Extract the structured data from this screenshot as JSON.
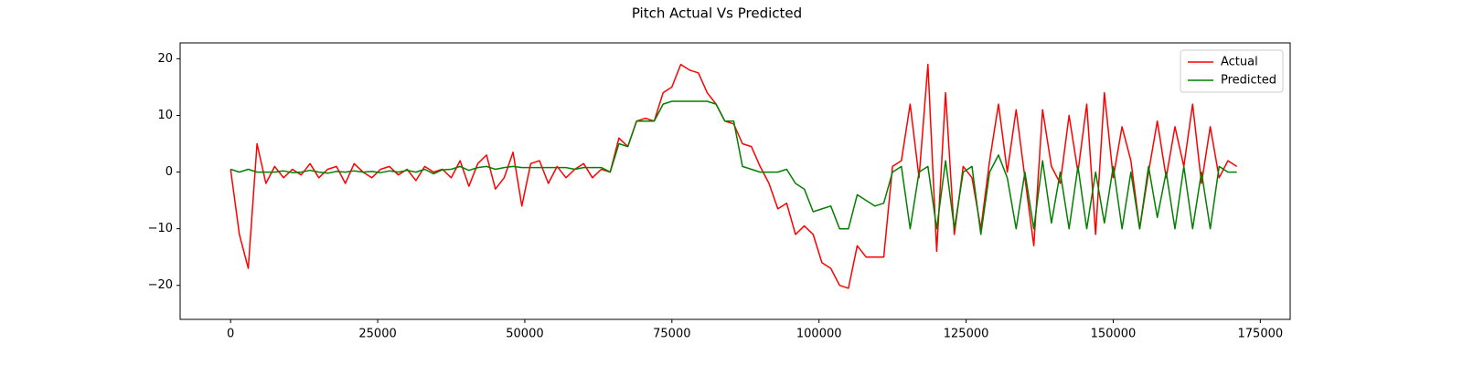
{
  "chart_data": {
    "type": "line",
    "title": "Pitch Actual Vs Predicted",
    "x": [
      0,
      1500,
      3000,
      4500,
      6000,
      7500,
      9000,
      10500,
      12000,
      13500,
      15000,
      16500,
      18000,
      19500,
      21000,
      22500,
      24000,
      25500,
      27000,
      28500,
      30000,
      31500,
      33000,
      34500,
      36000,
      37500,
      39000,
      40500,
      42000,
      43500,
      45000,
      46500,
      48000,
      49500,
      51000,
      52500,
      54000,
      55500,
      57000,
      58500,
      60000,
      61500,
      63000,
      64500,
      66000,
      67500,
      69000,
      70500,
      72000,
      73500,
      75000,
      76500,
      78000,
      79500,
      81000,
      82500,
      84000,
      85500,
      87000,
      88500,
      90000,
      91500,
      93000,
      94500,
      96000,
      97500,
      99000,
      100500,
      102000,
      103500,
      105000,
      106500,
      108000,
      109500,
      111000,
      112500,
      114000,
      115500,
      117000,
      118500,
      120000,
      121500,
      123000,
      124500,
      126000,
      127500,
      129000,
      130500,
      132000,
      133500,
      135000,
      136500,
      138000,
      139500,
      141000,
      142500,
      144000,
      145500,
      147000,
      148500,
      150000,
      151500,
      153000,
      154500,
      156000,
      157500,
      159000,
      160500,
      162000,
      163500,
      165000,
      166500,
      168000,
      169500,
      171000
    ],
    "series": [
      {
        "name": "Actual",
        "color": "#ff0000",
        "values": [
          0.5,
          -11,
          -17,
          5,
          -2,
          1,
          -1,
          0.5,
          -0.5,
          1.5,
          -1,
          0.5,
          1,
          -2,
          1.5,
          0,
          -1,
          0.5,
          1,
          -0.5,
          0.5,
          -1.5,
          1,
          0,
          0.5,
          -1,
          2,
          -2.5,
          1.5,
          3,
          -3,
          -1,
          3.5,
          -6,
          1.5,
          2,
          -2,
          1,
          -1,
          0.5,
          1.5,
          -1,
          0.5,
          0,
          6,
          4.5,
          9,
          9.5,
          9,
          14,
          15,
          19,
          18,
          17.5,
          14,
          12,
          9,
          8.5,
          5,
          4.5,
          1,
          -2,
          -6.5,
          -5.5,
          -11,
          -9.5,
          -11,
          -16,
          -17,
          -20,
          -20.5,
          -13,
          -15,
          -15,
          -15,
          1,
          2,
          12,
          -1,
          19,
          -14,
          14,
          -11,
          1,
          -1,
          -10,
          2,
          12,
          0,
          11,
          -1,
          -13,
          11,
          1,
          -2,
          10,
          0,
          12,
          -11,
          14,
          -1,
          8,
          2,
          -10,
          0,
          9,
          -1,
          8,
          1,
          12,
          -2,
          8,
          -1,
          2,
          1
        ]
      },
      {
        "name": "Predicted",
        "color": "#008000",
        "values": [
          0.5,
          0,
          0.5,
          0,
          0,
          0,
          0.2,
          -0.1,
          0,
          0.3,
          0,
          -0.2,
          0.1,
          0,
          0.2,
          0,
          0.1,
          -0.1,
          0.2,
          0,
          0.3,
          0,
          0.5,
          -0.3,
          0.4,
          0.5,
          1,
          0.3,
          0.8,
          1,
          0.5,
          0.8,
          1,
          0.8,
          0.8,
          0.8,
          0.8,
          0.8,
          0.8,
          0.5,
          0.8,
          0.8,
          0.8,
          0,
          5,
          4.5,
          9,
          9,
          9,
          12,
          12.5,
          12.5,
          12.5,
          12.5,
          12.5,
          12,
          9,
          9,
          1,
          0.5,
          0,
          0,
          0,
          0.5,
          -2,
          -3,
          -7,
          -6.5,
          -6,
          -10,
          -10,
          -4,
          -5,
          -6,
          -5.5,
          0,
          1,
          -10,
          0,
          1,
          -10,
          2,
          -10,
          0,
          1,
          -11,
          0,
          3,
          -1,
          -10,
          0,
          -10,
          2,
          -9,
          0,
          -10,
          1,
          -10,
          0,
          -9,
          1,
          -10,
          0,
          -10,
          1,
          -8,
          0,
          -10,
          1,
          -10,
          0,
          -10,
          1,
          0,
          0
        ]
      }
    ],
    "xlim": [
      -8575,
      180075
    ],
    "ylim": [
      -26,
      22.8
    ],
    "xticks": [
      0,
      25000,
      50000,
      75000,
      100000,
      125000,
      150000,
      175000
    ],
    "yticks": [
      {
        "value": -20,
        "label": "−20"
      },
      {
        "value": -10,
        "label": "−10"
      },
      0,
      10,
      20
    ],
    "legend": "upper right"
  }
}
